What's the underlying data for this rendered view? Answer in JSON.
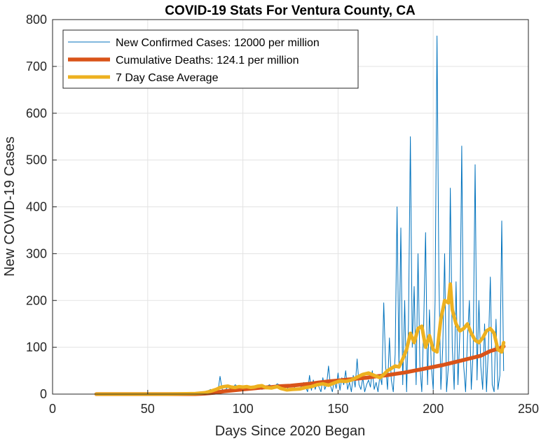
{
  "chart_data": {
    "type": "line",
    "title": "COVID-19 Stats For Ventura County, CA",
    "xlabel": "Days Since 2020 Began",
    "ylabel": "New COVID-19 Cases",
    "xlim": [
      0,
      250
    ],
    "ylim": [
      0,
      800
    ],
    "xticks": [
      0,
      50,
      100,
      150,
      200,
      250
    ],
    "yticks": [
      0,
      100,
      200,
      300,
      400,
      500,
      600,
      700,
      800
    ],
    "grid": true,
    "legend_position": "top-left",
    "series": [
      {
        "name": "New Confirmed Cases: 12000 per million",
        "color": "#0072BD",
        "x": [
          23,
          30,
          40,
          50,
          60,
          70,
          75,
          80,
          83,
          85,
          86,
          87,
          88,
          89,
          90,
          92,
          94,
          96,
          98,
          100,
          102,
          104,
          106,
          108,
          110,
          112,
          114,
          116,
          118,
          120,
          122,
          124,
          126,
          128,
          130,
          132,
          134,
          135,
          136,
          137,
          138,
          139,
          140,
          141,
          142,
          143,
          144,
          145,
          146,
          147,
          148,
          149,
          150,
          151,
          152,
          153,
          154,
          155,
          156,
          157,
          158,
          159,
          160,
          161,
          162,
          163,
          164,
          165,
          166,
          167,
          168,
          169,
          170,
          171,
          172,
          173,
          174,
          175,
          176,
          177,
          178,
          179,
          180,
          181,
          182,
          183,
          184,
          185,
          186,
          187,
          188,
          189,
          190,
          191,
          192,
          193,
          194,
          195,
          196,
          197,
          198,
          199,
          200,
          201,
          202,
          203,
          204,
          205,
          206,
          207,
          208,
          209,
          210,
          211,
          212,
          213,
          214,
          215,
          216,
          217,
          218,
          219,
          220,
          221,
          222,
          223,
          224,
          225,
          226,
          227,
          228,
          229,
          230,
          231,
          232,
          233,
          234,
          235,
          236,
          237
        ],
        "values": [
          0,
          0,
          0,
          0,
          0,
          0,
          2,
          3,
          10,
          5,
          12,
          8,
          38,
          12,
          5,
          15,
          10,
          20,
          14,
          18,
          16,
          12,
          14,
          18,
          10,
          15,
          20,
          14,
          22,
          18,
          8,
          15,
          20,
          10,
          12,
          25,
          5,
          40,
          8,
          30,
          10,
          25,
          15,
          5,
          35,
          10,
          20,
          60,
          18,
          5,
          30,
          12,
          45,
          8,
          35,
          20,
          50,
          10,
          25,
          5,
          40,
          15,
          75,
          20,
          10,
          35,
          5,
          20,
          30,
          15,
          50,
          10,
          25,
          5,
          40,
          20,
          195,
          60,
          10,
          120,
          30,
          5,
          85,
          400,
          60,
          355,
          20,
          200,
          5,
          150,
          550,
          100,
          230,
          20,
          300,
          60,
          5,
          150,
          345,
          20,
          180,
          60,
          10,
          200,
          765,
          250,
          10,
          100,
          300,
          5,
          60,
          440,
          100,
          10,
          240,
          20,
          130,
          530,
          60,
          5,
          120,
          200,
          10,
          90,
          490,
          30,
          200,
          60,
          10,
          150,
          5,
          100,
          250,
          20,
          5,
          160,
          10,
          40,
          370,
          50
        ]
      },
      {
        "name": "Cumulative Deaths: 124.1 per million",
        "color": "#D95319",
        "x": [
          23,
          60,
          75,
          80,
          85,
          90,
          95,
          100,
          105,
          110,
          115,
          120,
          125,
          130,
          135,
          140,
          145,
          150,
          155,
          160,
          165,
          170,
          175,
          180,
          185,
          190,
          195,
          200,
          205,
          210,
          215,
          220,
          225,
          228,
          230,
          235,
          237
        ],
        "values": [
          0,
          0,
          0,
          1,
          3,
          6,
          8,
          10,
          12,
          14,
          15,
          17,
          18,
          20,
          22,
          25,
          27,
          29,
          31,
          33,
          35,
          38,
          40,
          43,
          46,
          50,
          54,
          58,
          62,
          67,
          72,
          77,
          82,
          88,
          92,
          98,
          102
        ]
      },
      {
        "name": "7 Day Case Average",
        "color": "#EDB120",
        "x": [
          23,
          60,
          75,
          80,
          83,
          86,
          88,
          90,
          92,
          94,
          96,
          98,
          100,
          102,
          104,
          106,
          108,
          110,
          112,
          115,
          118,
          120,
          123,
          126,
          130,
          133,
          136,
          139,
          142,
          145,
          148,
          151,
          154,
          157,
          160,
          163,
          166,
          169,
          172,
          174,
          176,
          178,
          180,
          182,
          184,
          186,
          188,
          190,
          192,
          194,
          196,
          198,
          200,
          202,
          204,
          206,
          208,
          209,
          210,
          212,
          214,
          216,
          218,
          220,
          222,
          224,
          226,
          228,
          230,
          232,
          234,
          236,
          237
        ],
        "values": [
          0,
          0,
          1,
          3,
          6,
          10,
          14,
          16,
          17,
          15,
          14,
          16,
          15,
          16,
          14,
          15,
          17,
          18,
          14,
          13,
          16,
          12,
          9,
          10,
          11,
          14,
          16,
          20,
          22,
          19,
          24,
          28,
          27,
          30,
          36,
          42,
          45,
          40,
          35,
          42,
          50,
          55,
          60,
          58,
          75,
          95,
          130,
          110,
          140,
          145,
          100,
          125,
          95,
          90,
          160,
          200,
          195,
          235,
          180,
          150,
          135,
          140,
          150,
          130,
          115,
          110,
          120,
          135,
          140,
          130,
          95,
          90,
          110
        ]
      }
    ]
  }
}
